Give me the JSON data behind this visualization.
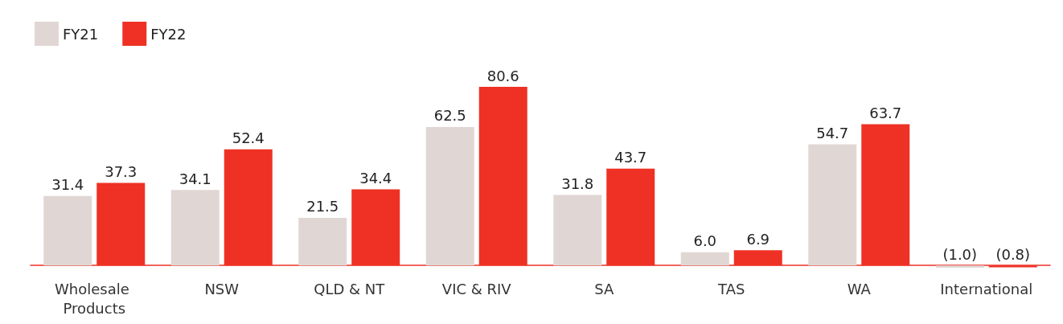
{
  "chart_data": {
    "type": "bar",
    "categories": [
      "Wholesale Products",
      "NSW",
      "QLD & NT",
      "VIC & RIV",
      "SA",
      "TAS",
      "WA",
      "International"
    ],
    "series": [
      {
        "name": "FY21",
        "color": "#e0d7d4",
        "values": [
          31.4,
          34.1,
          21.5,
          62.5,
          31.8,
          6.0,
          54.7,
          -1.0
        ],
        "value_labels": [
          "31.4",
          "34.1",
          "21.5",
          "62.5",
          "31.8",
          "6.0",
          "54.7",
          "(1.0)"
        ]
      },
      {
        "name": "FY22",
        "color": "#ee3124",
        "values": [
          37.3,
          52.4,
          34.4,
          80.6,
          43.7,
          6.9,
          63.7,
          -0.8
        ],
        "value_labels": [
          "37.3",
          "52.4",
          "34.4",
          "80.6",
          "43.7",
          "6.9",
          "63.7",
          "(0.8)"
        ]
      }
    ],
    "legend": "top left",
    "grid": false
  }
}
